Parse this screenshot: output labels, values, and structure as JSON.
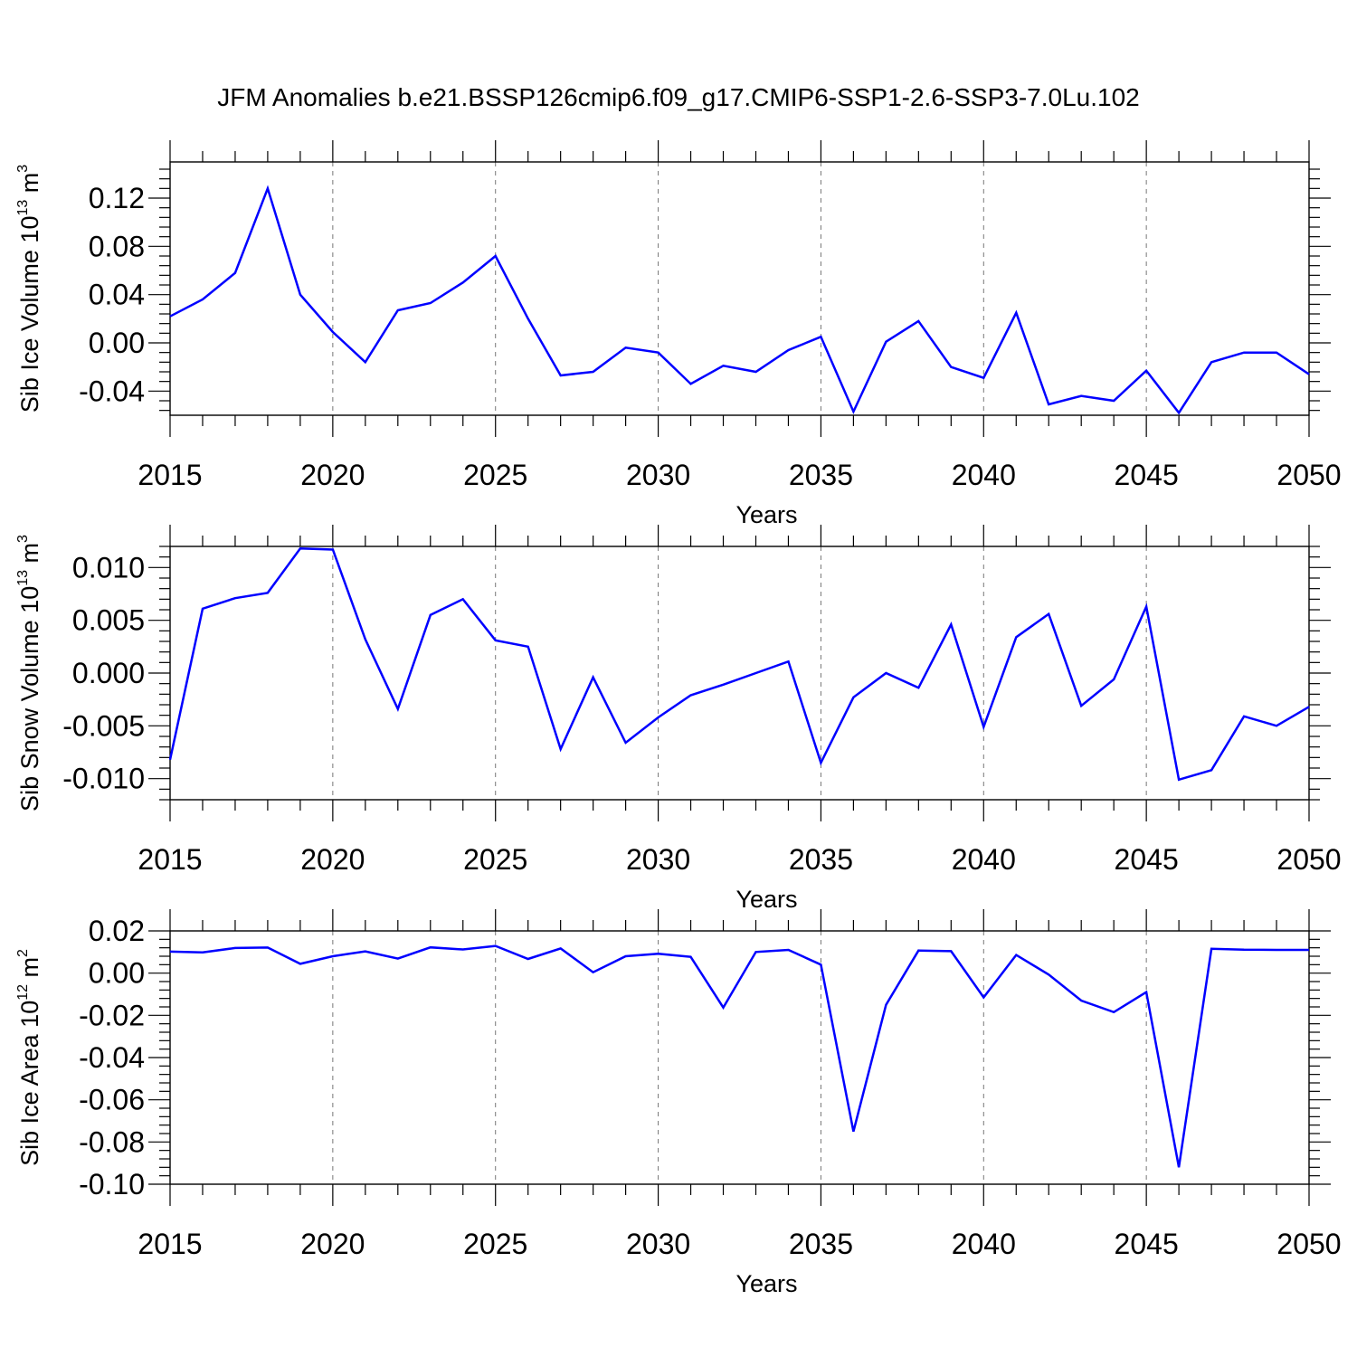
{
  "title": "JFM Anomalies b.e21.BSSP126cmip6.f09_g17.CMIP6-SSP1-2.6-SSP3-7.0Lu.102",
  "line_color": "#0000ff",
  "chart_data": [
    {
      "type": "line",
      "ylabel": {
        "text": "Sib Ice Volume 10",
        "sup": "13",
        "unit": " m",
        "unit_sup": "3"
      },
      "xlabel": "Years",
      "xlim": [
        2015,
        2050
      ],
      "ylim": [
        -0.06,
        0.15
      ],
      "xticks": [
        "2015",
        "2020",
        "2025",
        "2030",
        "2035",
        "2040",
        "2045",
        "2050"
      ],
      "yticks": [
        "0.12",
        "0.08",
        "0.04",
        "0.00",
        "-0.04"
      ],
      "grid": "vertical-dashed",
      "x": [
        2015,
        2016,
        2017,
        2018,
        2019,
        2020,
        2021,
        2022,
        2023,
        2024,
        2025,
        2026,
        2027,
        2028,
        2029,
        2030,
        2031,
        2032,
        2033,
        2034,
        2035,
        2036,
        2037,
        2038,
        2039,
        2040,
        2041,
        2042,
        2043,
        2044,
        2045,
        2046,
        2047,
        2048,
        2049,
        2050
      ],
      "values": [
        0.022,
        0.036,
        0.058,
        0.128,
        0.04,
        0.009,
        -0.016,
        0.027,
        0.033,
        0.05,
        0.072,
        0.02,
        -0.027,
        -0.024,
        -0.004,
        -0.008,
        -0.034,
        -0.019,
        -0.024,
        -0.006,
        0.005,
        -0.057,
        0.001,
        0.018,
        -0.02,
        -0.029,
        0.025,
        -0.051,
        -0.044,
        -0.048,
        -0.023,
        -0.058,
        -0.016,
        -0.008,
        -0.008,
        -0.026
      ]
    },
    {
      "type": "line",
      "ylabel": {
        "text": "Sib Snow Volume 10",
        "sup": "13",
        "unit": " m",
        "unit_sup": "3"
      },
      "xlabel": "Years",
      "xlim": [
        2015,
        2050
      ],
      "ylim": [
        -0.012,
        0.012
      ],
      "xticks": [
        "2015",
        "2020",
        "2025",
        "2030",
        "2035",
        "2040",
        "2045",
        "2050"
      ],
      "yticks": [
        "0.010",
        "0.005",
        "0.000",
        "-0.005",
        "-0.010"
      ],
      "grid": "vertical-dashed",
      "x": [
        2015,
        2016,
        2017,
        2018,
        2019,
        2020,
        2021,
        2022,
        2023,
        2024,
        2025,
        2026,
        2027,
        2028,
        2029,
        2030,
        2031,
        2032,
        2033,
        2034,
        2035,
        2036,
        2037,
        2038,
        2039,
        2040,
        2041,
        2042,
        2043,
        2044,
        2045,
        2046,
        2047,
        2048,
        2049,
        2050
      ],
      "values": [
        -0.0082,
        0.0061,
        0.0071,
        0.0076,
        0.0118,
        0.0117,
        0.0032,
        -0.0034,
        0.0055,
        0.007,
        0.0031,
        0.0025,
        -0.0072,
        -0.0004,
        -0.0066,
        -0.0042,
        -0.0021,
        -0.0011,
        0.0,
        0.0011,
        -0.0085,
        -0.0023,
        0.0,
        -0.0014,
        0.0046,
        -0.0051,
        0.0034,
        0.0056,
        -0.0031,
        -0.0006,
        0.0063,
        -0.0101,
        -0.0092,
        -0.0041,
        -0.005,
        -0.0032
      ]
    },
    {
      "type": "line",
      "ylabel": {
        "text": "Sib Ice Area 10",
        "sup": "12",
        "unit": " m",
        "unit_sup": "2"
      },
      "xlabel": "Years",
      "xlim": [
        2015,
        2050
      ],
      "ylim": [
        -0.1,
        0.02
      ],
      "xticks": [
        "2015",
        "2020",
        "2025",
        "2030",
        "2035",
        "2040",
        "2045",
        "2050"
      ],
      "yticks": [
        "0.02",
        "0.00",
        "-0.02",
        "-0.04",
        "-0.06",
        "-0.08",
        "-0.10"
      ],
      "grid": "vertical-dashed",
      "x": [
        2015,
        2016,
        2017,
        2018,
        2019,
        2020,
        2021,
        2022,
        2023,
        2024,
        2025,
        2026,
        2027,
        2028,
        2029,
        2030,
        2031,
        2032,
        2033,
        2034,
        2035,
        2036,
        2037,
        2038,
        2039,
        2040,
        2041,
        2042,
        2043,
        2044,
        2045,
        2046,
        2047,
        2048,
        2049,
        2050
      ],
      "values": [
        0.0102,
        0.0098,
        0.0119,
        0.0121,
        0.0044,
        0.008,
        0.0103,
        0.0069,
        0.0122,
        0.0112,
        0.0129,
        0.0067,
        0.0117,
        0.0004,
        0.008,
        0.0092,
        0.0077,
        -0.0163,
        0.01,
        0.011,
        0.004,
        -0.075,
        -0.015,
        0.0107,
        0.0104,
        -0.0115,
        0.0086,
        -0.0007,
        -0.013,
        -0.0185,
        -0.009,
        -0.092,
        0.0115,
        0.0111,
        0.011,
        0.011
      ]
    }
  ]
}
